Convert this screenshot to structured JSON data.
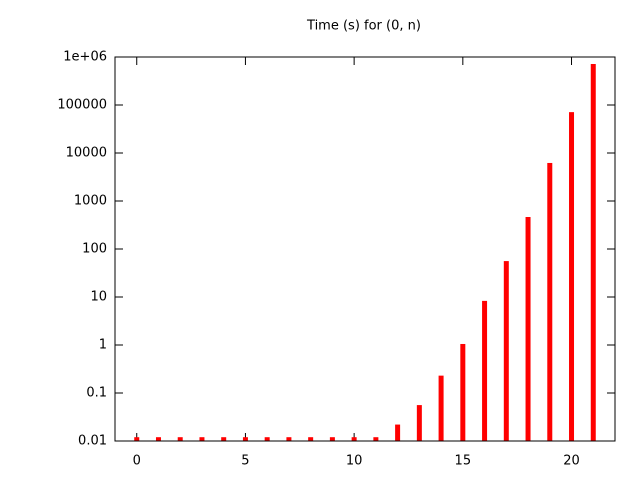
{
  "chart_data": {
    "type": "bar",
    "title": "Time (s) for (0, n)",
    "x": [
      0,
      1,
      2,
      3,
      4,
      5,
      6,
      7,
      8,
      9,
      10,
      11,
      12,
      13,
      14,
      15,
      16,
      17,
      18,
      19,
      20,
      21
    ],
    "values": [
      0.012,
      0.012,
      0.012,
      0.012,
      0.012,
      0.012,
      0.012,
      0.012,
      0.012,
      0.012,
      0.012,
      0.012,
      0.022,
      0.056,
      0.23,
      1.05,
      8.3,
      56,
      464,
      6200,
      71000,
      715000
    ],
    "color": "#ff0000",
    "xlim": [
      -1,
      22
    ],
    "xticks": [
      0,
      5,
      10,
      15,
      20
    ],
    "ylim": [
      0.01,
      1000000
    ],
    "ylog": true,
    "yticks": [
      0.01,
      0.1,
      1,
      10,
      100,
      1000,
      10000,
      100000,
      {
        "value": 1000000,
        "label": "1e+06"
      }
    ],
    "grid": false
  }
}
